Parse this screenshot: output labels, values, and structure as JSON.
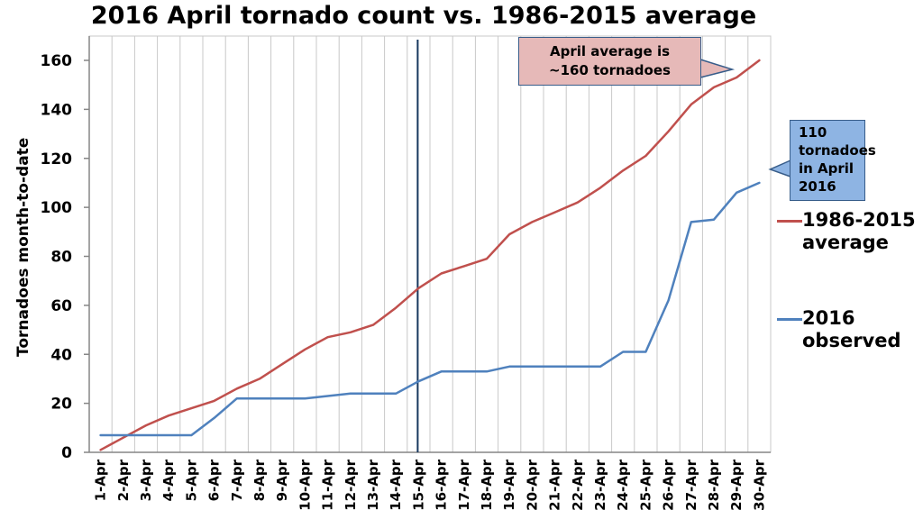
{
  "chart_data": {
    "type": "line",
    "title": "2016 April tornado count vs. 1986-2015 average",
    "ylabel": "Tornadoes month-to-date",
    "xlabel": "",
    "ylim": [
      0,
      160
    ],
    "yticks": [
      0,
      20,
      40,
      60,
      80,
      100,
      120,
      140,
      160
    ],
    "grid": "vertical",
    "legend": "right",
    "categories": [
      "1-Apr",
      "2-Apr",
      "3-Apr",
      "4-Apr",
      "5-Apr",
      "6-Apr",
      "7-Apr",
      "8-Apr",
      "9-Apr",
      "10-Apr",
      "11-Apr",
      "12-Apr",
      "13-Apr",
      "14-Apr",
      "15-Apr",
      "16-Apr",
      "17-Apr",
      "18-Apr",
      "19-Apr",
      "20-Apr",
      "21-Apr",
      "22-Apr",
      "23-Apr",
      "24-Apr",
      "25-Apr",
      "26-Apr",
      "27-Apr",
      "28-Apr",
      "29-Apr",
      "30-Apr"
    ],
    "series": [
      {
        "name": "1986-2015 average",
        "legend_lines": [
          "1986-2015",
          "average"
        ],
        "color": "#c0504d",
        "values": [
          1,
          6,
          11,
          15,
          18,
          21,
          26,
          30,
          36,
          42,
          47,
          49,
          52,
          59,
          67,
          73,
          76,
          79,
          89,
          94,
          98,
          102,
          108,
          115,
          121,
          131,
          142,
          149,
          153,
          160
        ]
      },
      {
        "name": "2016 observed",
        "legend_lines": [
          "2016",
          "observed"
        ],
        "color": "#4f81bd",
        "values": [
          7,
          7,
          7,
          7,
          7,
          14,
          22,
          22,
          22,
          22,
          23,
          24,
          24,
          24,
          29,
          33,
          33,
          33,
          35,
          35,
          35,
          35,
          35,
          41,
          41,
          62,
          94,
          95,
          106,
          110
        ]
      }
    ],
    "vertical_marker": {
      "category": "15-Apr",
      "color": "#17375e"
    },
    "annotations": [
      {
        "id": "avg",
        "text": "April average is ~160 tornadoes",
        "lines": [
          "April average is",
          "~160 tornadoes"
        ],
        "color": "#e6b9b8",
        "points_to": {
          "category": "30-Apr",
          "value": 160
        }
      },
      {
        "id": "obs",
        "text": "110 tornadoes in April 2016",
        "lines": [
          "110",
          "tornadoes",
          "in April",
          "2016"
        ],
        "color": "#8eb4e3",
        "points_to": {
          "category": "30-Apr",
          "value": 110
        }
      }
    ]
  }
}
